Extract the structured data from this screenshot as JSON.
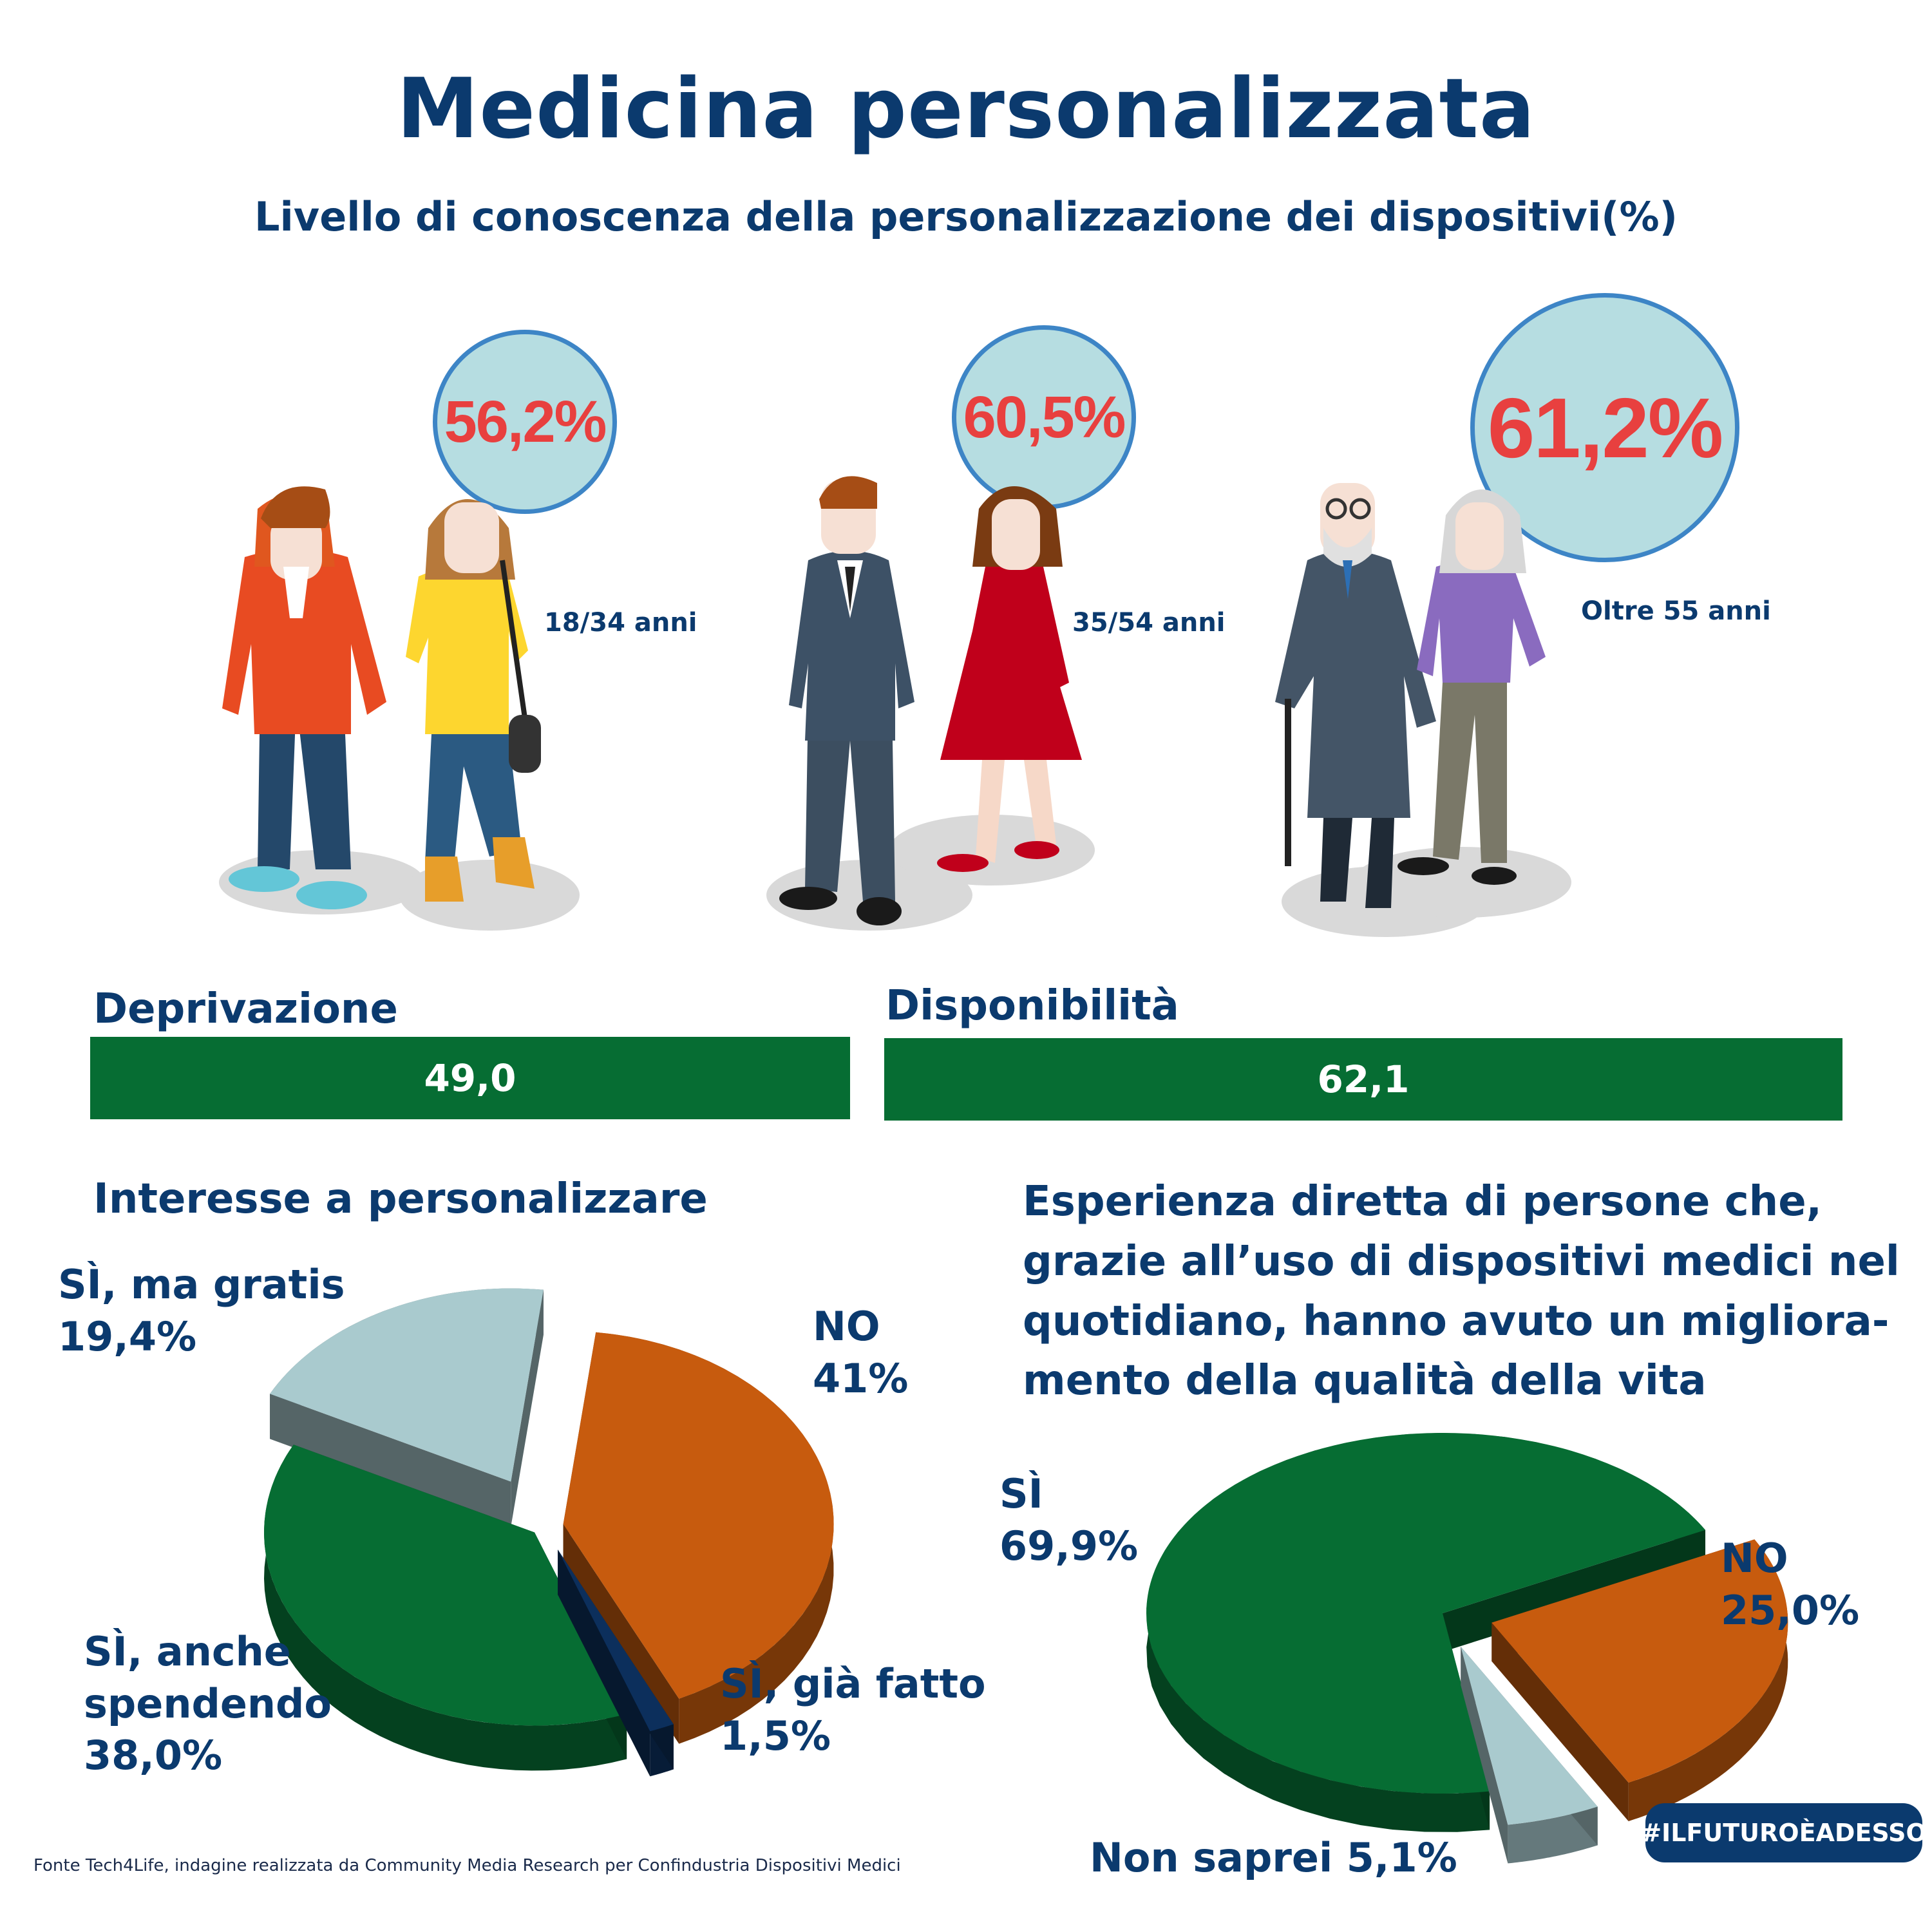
{
  "title": "Medicina personalizzata",
  "subtitle": "Livello di conoscenza della personalizzazione dei dispositivi(%)",
  "age_groups": [
    {
      "label": "18/34 anni",
      "value_label": "56,2%"
    },
    {
      "label": "35/54 anni",
      "value_label": "60,5%"
    },
    {
      "label": "Oltre 55 anni",
      "value_label": "61,2%"
    }
  ],
  "bars": [
    {
      "label": "Deprivazione",
      "value_label": "49,0"
    },
    {
      "label": "Disponibilità",
      "value_label": "62,1"
    }
  ],
  "pie1": {
    "title": "Interesse a personalizzare",
    "labels": {
      "no": [
        "NO",
        "41%"
      ],
      "gratis": [
        "SÌ, ma gratis",
        "19,4%"
      ],
      "spendendo": [
        "SÌ, anche",
        "spendendo",
        "38,0%"
      ],
      "fatto": [
        "SÌ, già fatto",
        "1,5%"
      ]
    }
  },
  "pie2": {
    "title_lines": [
      "Esperienza diretta di persone che,",
      "grazie all’uso di dispositivi medici nel",
      "quotidiano, hanno avuto un migliora-",
      "mento della qualità della vita"
    ],
    "labels": {
      "si": [
        "SÌ",
        "69,9%"
      ],
      "no": [
        "NO",
        "25,0%"
      ],
      "nonsaprei": "Non saprei 5,1%"
    }
  },
  "chart_data": [
    {
      "type": "bar",
      "title": "Livello di conoscenza della personalizzazione dei dispositivi(%)",
      "categories": [
        "18/34 anni",
        "35/54 anni",
        "Oltre 55 anni"
      ],
      "values": [
        56.2,
        60.5,
        61.2
      ]
    },
    {
      "type": "bar",
      "categories": [
        "Deprivazione",
        "Disponibilità"
      ],
      "values": [
        49.0,
        62.1
      ]
    },
    {
      "type": "pie",
      "title": "Interesse a personalizzare",
      "categories": [
        "NO",
        "SÌ, già fatto",
        "SÌ, anche spendendo",
        "SÌ, ma gratis"
      ],
      "values": [
        41,
        1.5,
        38.0,
        19.4
      ],
      "colors": [
        "#c75b0e",
        "#0c2f5c",
        "#066d33",
        "#a9cace"
      ]
    },
    {
      "type": "pie",
      "title": "Esperienza diretta di persone che, grazie all’uso di dispositivi medici nel quotidiano, hanno avuto un miglioramento della qualità della vita",
      "categories": [
        "NO",
        "Non saprei",
        "SÌ"
      ],
      "values": [
        25.0,
        5.1,
        69.9
      ],
      "colors": [
        "#c75b0e",
        "#a9cace",
        "#066d33"
      ]
    }
  ],
  "source": "Fonte Tech4Life, indagine realizzata da Community Media Research per Confindustria Dispositivi Medici",
  "hashtag": "#ILFUTUROÈADESSO"
}
